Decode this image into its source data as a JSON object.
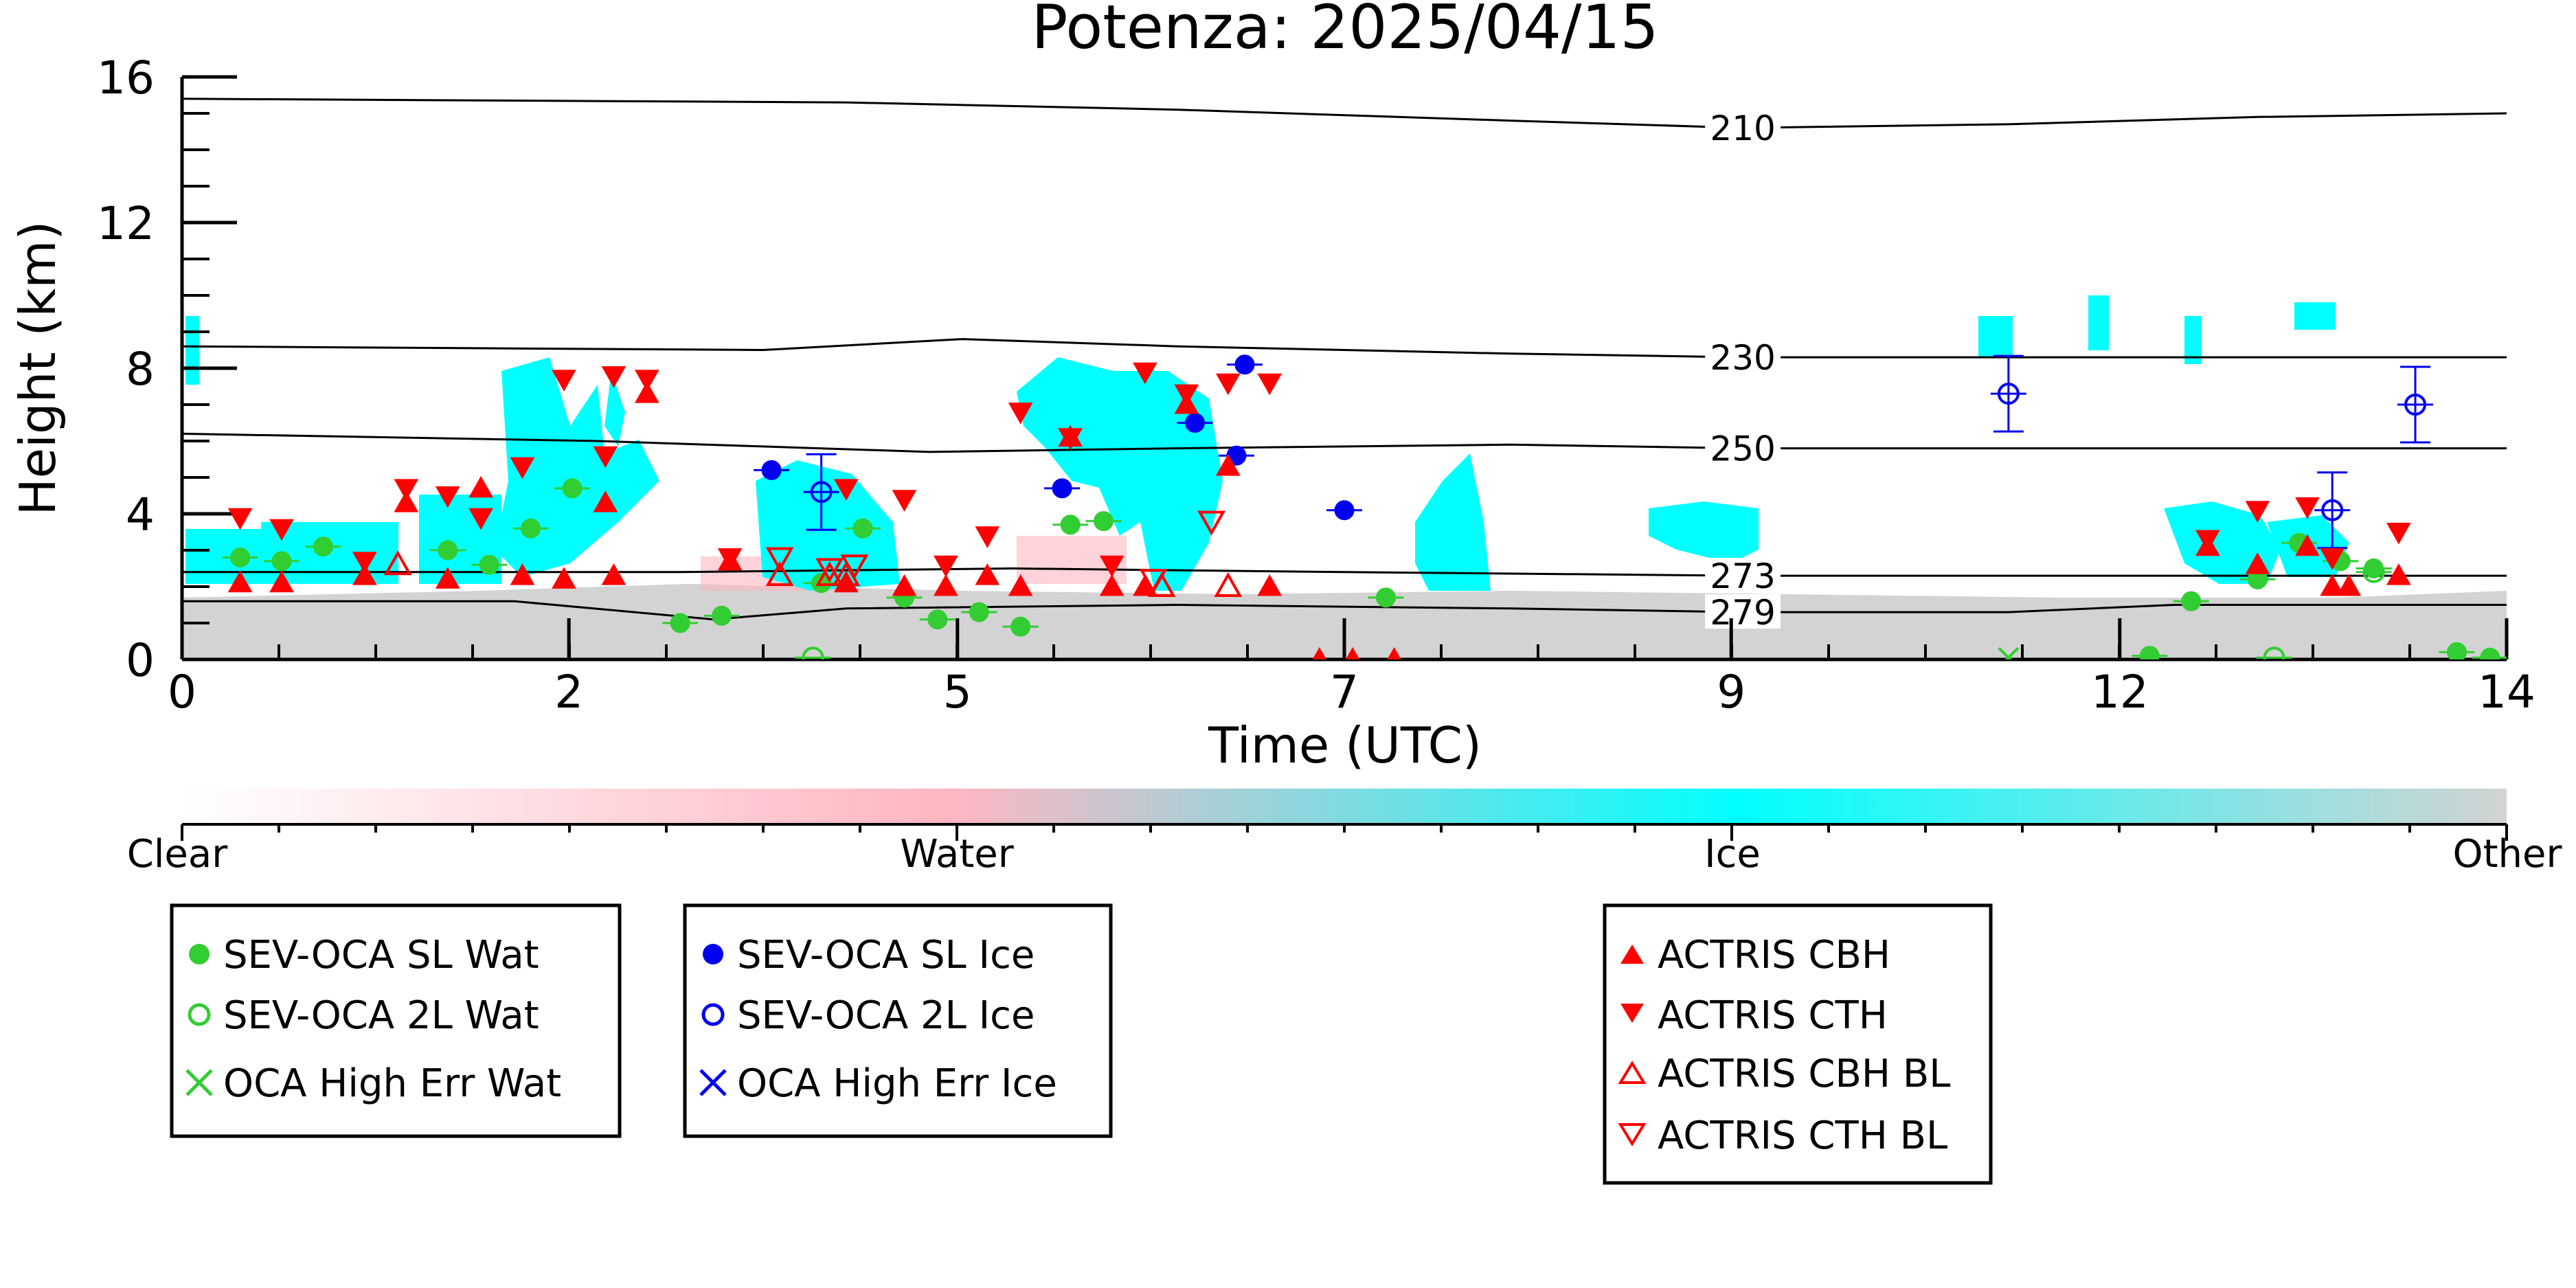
{
  "colors": {
    "water": "#32cd32",
    "ice": "#0000ee",
    "actris": "#ff0000",
    "cloud_ice": "#00ffff",
    "cloud_water": "#ffb6c1",
    "other": "#d3d3d3"
  },
  "chart_data": {
    "type": "scatter",
    "title": "Potenza: 2025/04/15",
    "xlabel": "Time (UTC)",
    "ylabel": "Height (km)",
    "xlim": [
      0,
      14
    ],
    "ylim": [
      0,
      16
    ],
    "x_ticks": [
      {
        "v": 0,
        "label": "0"
      },
      {
        "v": 2.33,
        "label": "2"
      },
      {
        "v": 4.67,
        "label": "5"
      },
      {
        "v": 7,
        "label": "7"
      },
      {
        "v": 9.33,
        "label": "9"
      },
      {
        "v": 11.67,
        "label": "12"
      },
      {
        "v": 14,
        "label": "14"
      }
    ],
    "y_ticks": [
      0,
      4,
      8,
      12,
      16
    ],
    "isotherms": [
      {
        "label": "210",
        "label_x": 9.4,
        "pts": [
          [
            0,
            15.4
          ],
          [
            4,
            15.3
          ],
          [
            6,
            15.1
          ],
          [
            8,
            14.8
          ],
          [
            9.4,
            14.6
          ],
          [
            11,
            14.7
          ],
          [
            12.5,
            14.9
          ],
          [
            14,
            15.0
          ]
        ]
      },
      {
        "label": "230",
        "label_x": 9.4,
        "pts": [
          [
            0,
            8.6
          ],
          [
            3.5,
            8.5
          ],
          [
            4.7,
            8.8
          ],
          [
            6,
            8.6
          ],
          [
            8,
            8.4
          ],
          [
            9.4,
            8.3
          ],
          [
            12,
            8.3
          ],
          [
            14,
            8.3
          ]
        ]
      },
      {
        "label": "250",
        "label_x": 9.4,
        "pts": [
          [
            0,
            6.2
          ],
          [
            2.5,
            6.0
          ],
          [
            4.5,
            5.7
          ],
          [
            6,
            5.8
          ],
          [
            8,
            5.9
          ],
          [
            9.4,
            5.8
          ],
          [
            12,
            5.8
          ],
          [
            14,
            5.8
          ]
        ]
      },
      {
        "label": "273",
        "label_x": 9.4,
        "pts": [
          [
            0,
            2.4
          ],
          [
            3,
            2.4
          ],
          [
            5,
            2.5
          ],
          [
            7,
            2.4
          ],
          [
            9.4,
            2.3
          ],
          [
            12,
            2.3
          ],
          [
            14,
            2.3
          ]
        ]
      },
      {
        "label": "279",
        "label_x": 9.4,
        "pts": [
          [
            0,
            1.6
          ],
          [
            2,
            1.6
          ],
          [
            3.2,
            1.1
          ],
          [
            4,
            1.4
          ],
          [
            6,
            1.5
          ],
          [
            8,
            1.4
          ],
          [
            9.4,
            1.3
          ],
          [
            11,
            1.3
          ],
          [
            12,
            1.5
          ],
          [
            14,
            1.5
          ]
        ]
      }
    ],
    "series": [
      {
        "name": "SEV-OCA SL Wat",
        "x": [
          0.35,
          0.6,
          0.85,
          1.6,
          1.85,
          2.1,
          2.35,
          3.0,
          3.25,
          3.85,
          4.1,
          4.35,
          4.55,
          4.8,
          5.05,
          5.35,
          5.55,
          7.25,
          11.85,
          12.1,
          12.5,
          12.75,
          13.0,
          13.2,
          13.7,
          13.9
        ],
        "y": [
          2.8,
          2.7,
          3.1,
          3.0,
          2.6,
          3.6,
          4.7,
          1.0,
          1.2,
          2.1,
          3.6,
          1.7,
          1.1,
          1.3,
          0.9,
          3.7,
          3.8,
          1.7,
          0.1,
          1.6,
          2.2,
          3.2,
          2.7,
          2.5,
          0.2,
          0.05
        ]
      },
      {
        "name": "SEV-OCA 2L Wat",
        "x": [
          3.8,
          12.6,
          13.2
        ],
        "y": [
          0.05,
          0.05,
          2.4
        ]
      },
      {
        "name": "SEV-OCA SL Ice",
        "x": [
          3.55,
          5.3,
          6.1,
          6.4,
          6.35,
          7.0
        ],
        "y": [
          5.2,
          4.7,
          6.5,
          8.1,
          5.6,
          4.1
        ]
      },
      {
        "name": "SEV-OCA 2L Ice",
        "x": [
          3.85,
          11.0,
          12.95,
          13.45
        ],
        "y": [
          4.6,
          7.3,
          4.1,
          7.0
        ]
      },
      {
        "name": "OCA High Err Wat",
        "x": [
          11.0
        ],
        "y": [
          0.05
        ]
      },
      {
        "name": "ACTRIS CBH",
        "x": [
          0.35,
          0.6,
          1.1,
          1.35,
          1.6,
          1.8,
          2.05,
          2.3,
          2.55,
          2.6,
          2.8,
          3.3,
          4.0,
          4.35,
          4.6,
          4.85,
          5.05,
          5.35,
          5.6,
          5.8,
          6.05,
          6.3,
          6.55,
          6.85,
          7.05,
          7.3,
          12.2,
          12.5,
          12.8,
          12.95,
          13.05,
          13.35
        ],
        "y": [
          2.1,
          2.1,
          2.3,
          4.3,
          2.2,
          4.7,
          2.3,
          2.2,
          4.3,
          2.3,
          7.3,
          2.7,
          2.1,
          2.0,
          2.0,
          2.3,
          2.0,
          6.1,
          2.0,
          2.0,
          7.0,
          5.3,
          2.0,
          0.0,
          0.0,
          0.0,
          3.1,
          2.6,
          3.1,
          2.0,
          2.0,
          2.3
        ]
      },
      {
        "name": "ACTRIS CTH",
        "x": [
          0.35,
          0.6,
          1.1,
          1.35,
          1.6,
          1.8,
          2.05,
          2.3,
          2.55,
          2.6,
          2.8,
          3.3,
          4.0,
          4.35,
          4.6,
          4.85,
          5.05,
          5.35,
          5.6,
          5.8,
          6.05,
          6.3,
          6.55,
          12.2,
          12.5,
          12.8,
          12.95,
          13.35
        ],
        "y": [
          3.9,
          3.6,
          2.7,
          4.7,
          4.5,
          3.9,
          5.3,
          7.7,
          5.6,
          7.8,
          7.7,
          2.8,
          4.7,
          4.4,
          2.6,
          3.4,
          6.8,
          6.1,
          2.6,
          7.9,
          7.3,
          7.6,
          7.6,
          3.3,
          4.1,
          4.2,
          2.8,
          3.5
        ]
      },
      {
        "name": "ACTRIS CBH BL",
        "x": [
          1.3,
          3.6,
          3.9,
          4.0,
          5.9,
          6.3
        ],
        "y": [
          2.6,
          2.3,
          2.3,
          2.3,
          2.0,
          2.0
        ]
      },
      {
        "name": "ACTRIS CTH BL",
        "x": [
          3.6,
          3.9,
          4.05,
          5.85,
          6.2
        ],
        "y": [
          2.8,
          2.5,
          2.6,
          2.2,
          3.8
        ]
      }
    ],
    "colorbar": {
      "labels": [
        "Clear",
        "Water",
        "Ice",
        "Other"
      ]
    },
    "legend_placement": "below"
  }
}
